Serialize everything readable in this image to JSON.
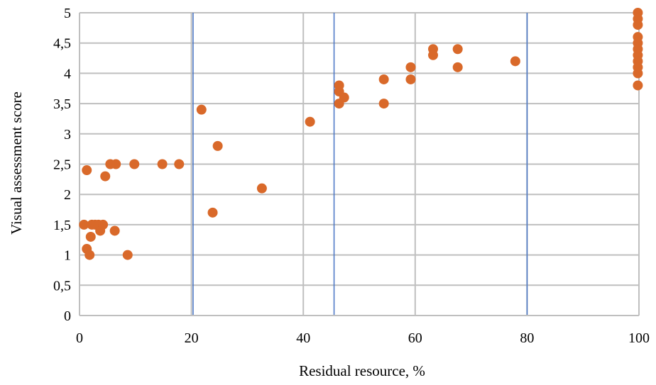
{
  "chart_data": {
    "type": "scatter",
    "xlabel": "Residual resource, %",
    "ylabel": "Visual assessment score",
    "xlim": [
      0,
      100
    ],
    "ylim": [
      0,
      5
    ],
    "x_ticks": [
      {
        "value": 0,
        "label": "0"
      },
      {
        "value": 20,
        "label": "20"
      },
      {
        "value": 40,
        "label": "40"
      },
      {
        "value": 60,
        "label": "60"
      },
      {
        "value": 80,
        "label": "80"
      },
      {
        "value": 100,
        "label": "100"
      }
    ],
    "y_ticks": [
      {
        "value": 0,
        "label": "0"
      },
      {
        "value": 0.5,
        "label": "0,5"
      },
      {
        "value": 1,
        "label": "1"
      },
      {
        "value": 1.5,
        "label": "1,5"
      },
      {
        "value": 2,
        "label": "2"
      },
      {
        "value": 2.5,
        "label": "2,5"
      },
      {
        "value": 3,
        "label": "3"
      },
      {
        "value": 3.5,
        "label": "3,5"
      },
      {
        "value": 4,
        "label": "4"
      },
      {
        "value": 4.5,
        "label": "4,5"
      },
      {
        "value": 5,
        "label": "5"
      }
    ],
    "grid": true,
    "legend": "none",
    "reference_lines_x": [
      20.3,
      45.5,
      80
    ],
    "colors": {
      "points": "#d9692a",
      "grid": "#bfbfbf",
      "reference_lines": "#4472c4",
      "axis": "#bfbfbf"
    },
    "series": [
      {
        "points": [
          [
            0.8,
            1.5
          ],
          [
            1.3,
            2.4
          ],
          [
            1.3,
            1.1
          ],
          [
            1.8,
            1.0
          ],
          [
            2.0,
            1.3
          ],
          [
            2.2,
            1.5
          ],
          [
            2.8,
            1.5
          ],
          [
            3.4,
            1.5
          ],
          [
            3.7,
            1.4
          ],
          [
            4.2,
            1.5
          ],
          [
            4.6,
            2.3
          ],
          [
            5.5,
            2.5
          ],
          [
            6.5,
            2.5
          ],
          [
            6.3,
            1.4
          ],
          [
            8.6,
            1.0
          ],
          [
            9.8,
            2.5
          ],
          [
            14.8,
            2.5
          ],
          [
            17.8,
            2.5
          ],
          [
            21.8,
            3.4
          ],
          [
            23.8,
            1.7
          ],
          [
            24.7,
            2.8
          ],
          [
            32.6,
            2.1
          ],
          [
            41.2,
            3.2
          ],
          [
            46.4,
            3.8
          ],
          [
            46.4,
            3.7
          ],
          [
            46.4,
            3.5
          ],
          [
            47.3,
            3.6
          ],
          [
            54.4,
            3.9
          ],
          [
            54.4,
            3.5
          ],
          [
            59.2,
            4.1
          ],
          [
            59.2,
            3.9
          ],
          [
            63.2,
            4.4
          ],
          [
            63.2,
            4.3
          ],
          [
            67.6,
            4.4
          ],
          [
            67.6,
            4.1
          ],
          [
            77.9,
            4.2
          ],
          [
            99.8,
            5.0
          ],
          [
            99.8,
            4.9
          ],
          [
            99.8,
            4.8
          ],
          [
            99.8,
            4.6
          ],
          [
            99.8,
            4.5
          ],
          [
            99.8,
            4.4
          ],
          [
            99.8,
            4.3
          ],
          [
            99.8,
            4.2
          ],
          [
            99.8,
            4.1
          ],
          [
            99.8,
            4.0
          ],
          [
            99.8,
            3.8
          ]
        ]
      }
    ]
  }
}
